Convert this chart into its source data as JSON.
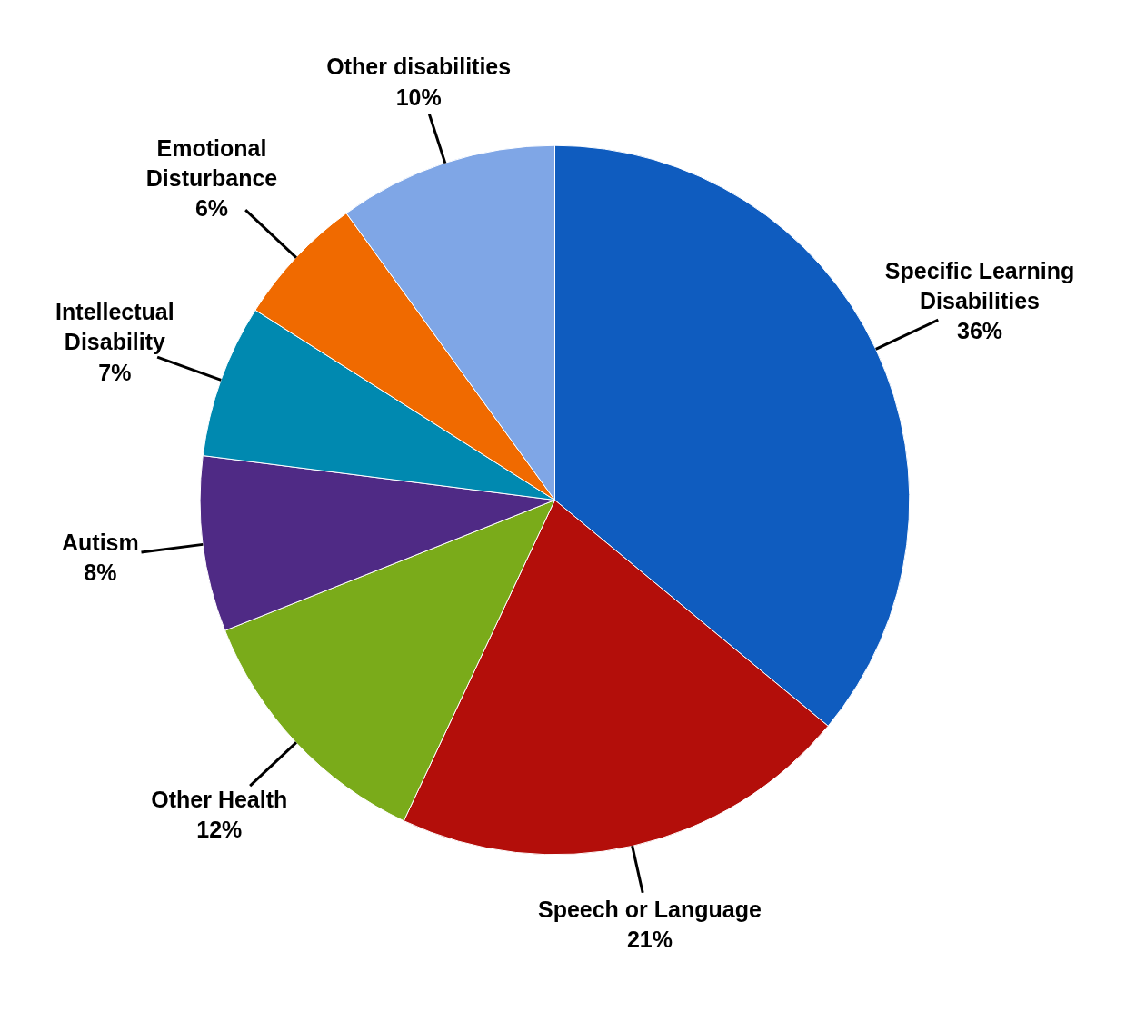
{
  "chart_data": {
    "type": "pie",
    "categories": [
      "Specific Learning Disabilities",
      "Speech or Language",
      "Other Health",
      "Autism",
      "Intellectual Disability",
      "Emotional Disturbance",
      "Other disabilities"
    ],
    "values": [
      36,
      21,
      12,
      8,
      7,
      6,
      10
    ],
    "value_labels": [
      "36%",
      "21%",
      "12%",
      "8%",
      "7%",
      "6%",
      "10%"
    ],
    "colors": [
      "#0f5cbf",
      "#b30e0a",
      "#7aab1a",
      "#4f2a85",
      "#0089b0",
      "#f06a00",
      "#7fa6e6"
    ]
  }
}
